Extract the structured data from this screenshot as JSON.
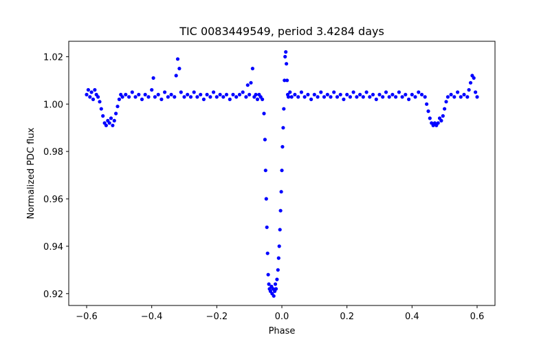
{
  "chart_data": {
    "type": "scatter",
    "title": "TIC 0083449549, period 3.4284 days",
    "xlabel": "Phase",
    "ylabel": "Normalized PDC flux",
    "xlim": [
      -0.655,
      0.655
    ],
    "ylim": [
      0.915,
      1.0265
    ],
    "xticks": [
      -0.6,
      -0.4,
      -0.2,
      0.0,
      0.2,
      0.4,
      0.6
    ],
    "xtick_labels": [
      "−0.6",
      "−0.4",
      "−0.2",
      "0.0",
      "0.2",
      "0.4",
      "0.6"
    ],
    "yticks": [
      0.92,
      0.94,
      0.96,
      0.98,
      1.0,
      1.02
    ],
    "ytick_labels": [
      "0.92",
      "0.94",
      "0.96",
      "0.98",
      "1.00",
      "1.02"
    ],
    "grid": false,
    "marker_color": "#0000ff",
    "series": [
      {
        "points": [
          [
            -0.6,
            1.004
          ],
          [
            -0.595,
            1.006
          ],
          [
            -0.59,
            1.003
          ],
          [
            -0.585,
            1.005
          ],
          [
            -0.58,
            1.002
          ],
          [
            -0.575,
            1.006
          ],
          [
            -0.57,
            1.004
          ],
          [
            -0.565,
            1.003
          ],
          [
            -0.56,
            1.001
          ],
          [
            -0.555,
            0.998
          ],
          [
            -0.55,
            0.995
          ],
          [
            -0.545,
            0.992
          ],
          [
            -0.54,
            0.991
          ],
          [
            -0.535,
            0.993
          ],
          [
            -0.53,
            0.992
          ],
          [
            -0.525,
            0.994
          ],
          [
            -0.52,
            0.991
          ],
          [
            -0.515,
            0.993
          ],
          [
            -0.51,
            0.996
          ],
          [
            -0.505,
            0.999
          ],
          [
            -0.5,
            1.002
          ],
          [
            -0.495,
            1.004
          ],
          [
            -0.49,
            1.003
          ],
          [
            -0.48,
            1.004
          ],
          [
            -0.47,
            1.003
          ],
          [
            -0.46,
            1.005
          ],
          [
            -0.45,
            1.003
          ],
          [
            -0.44,
            1.004
          ],
          [
            -0.43,
            1.002
          ],
          [
            -0.42,
            1.004
          ],
          [
            -0.41,
            1.003
          ],
          [
            -0.4,
            1.006
          ],
          [
            -0.395,
            1.011
          ],
          [
            -0.39,
            1.003
          ],
          [
            -0.38,
            1.004
          ],
          [
            -0.37,
            1.002
          ],
          [
            -0.36,
            1.005
          ],
          [
            -0.35,
            1.003
          ],
          [
            -0.34,
            1.004
          ],
          [
            -0.33,
            1.003
          ],
          [
            -0.325,
            1.012
          ],
          [
            -0.32,
            1.019
          ],
          [
            -0.315,
            1.015
          ],
          [
            -0.31,
            1.005
          ],
          [
            -0.3,
            1.003
          ],
          [
            -0.29,
            1.004
          ],
          [
            -0.28,
            1.003
          ],
          [
            -0.27,
            1.005
          ],
          [
            -0.26,
            1.003
          ],
          [
            -0.25,
            1.004
          ],
          [
            -0.24,
            1.002
          ],
          [
            -0.23,
            1.004
          ],
          [
            -0.22,
            1.003
          ],
          [
            -0.21,
            1.005
          ],
          [
            -0.2,
            1.003
          ],
          [
            -0.19,
            1.004
          ],
          [
            -0.18,
            1.003
          ],
          [
            -0.17,
            1.004
          ],
          [
            -0.16,
            1.002
          ],
          [
            -0.15,
            1.004
          ],
          [
            -0.14,
            1.003
          ],
          [
            -0.13,
            1.004
          ],
          [
            -0.12,
            1.005
          ],
          [
            -0.11,
            1.003
          ],
          [
            -0.105,
            1.008
          ],
          [
            -0.1,
            1.004
          ],
          [
            -0.095,
            1.009
          ],
          [
            -0.09,
            1.015
          ],
          [
            -0.085,
            1.003
          ],
          [
            -0.08,
            1.004
          ],
          [
            -0.075,
            1.002
          ],
          [
            -0.07,
            1.004
          ],
          [
            -0.065,
            1.003
          ],
          [
            -0.06,
            1.002
          ],
          [
            -0.055,
            0.996
          ],
          [
            -0.052,
            0.985
          ],
          [
            -0.05,
            0.972
          ],
          [
            -0.048,
            0.96
          ],
          [
            -0.046,
            0.948
          ],
          [
            -0.044,
            0.937
          ],
          [
            -0.042,
            0.928
          ],
          [
            -0.04,
            0.924
          ],
          [
            -0.038,
            0.922
          ],
          [
            -0.035,
            0.921
          ],
          [
            -0.032,
            0.923
          ],
          [
            -0.03,
            0.92
          ],
          [
            -0.027,
            0.922
          ],
          [
            -0.025,
            0.919
          ],
          [
            -0.022,
            0.921
          ],
          [
            -0.02,
            0.924
          ],
          [
            -0.018,
            0.922
          ],
          [
            -0.015,
            0.926
          ],
          [
            -0.012,
            0.93
          ],
          [
            -0.01,
            0.935
          ],
          [
            -0.008,
            0.94
          ],
          [
            -0.006,
            0.947
          ],
          [
            -0.004,
            0.955
          ],
          [
            -0.002,
            0.963
          ],
          [
            0.0,
            0.972
          ],
          [
            0.002,
            0.982
          ],
          [
            0.004,
            0.99
          ],
          [
            0.006,
            0.998
          ],
          [
            0.008,
            1.01
          ],
          [
            0.01,
            1.02
          ],
          [
            0.012,
            1.022
          ],
          [
            0.014,
            1.017
          ],
          [
            0.016,
            1.01
          ],
          [
            0.018,
            1.004
          ],
          [
            0.02,
            1.003
          ],
          [
            0.025,
            1.005
          ],
          [
            0.03,
            1.003
          ],
          [
            0.04,
            1.004
          ],
          [
            0.05,
            1.003
          ],
          [
            0.06,
            1.005
          ],
          [
            0.07,
            1.003
          ],
          [
            0.08,
            1.004
          ],
          [
            0.09,
            1.002
          ],
          [
            0.1,
            1.004
          ],
          [
            0.11,
            1.003
          ],
          [
            0.12,
            1.005
          ],
          [
            0.13,
            1.003
          ],
          [
            0.14,
            1.004
          ],
          [
            0.15,
            1.003
          ],
          [
            0.16,
            1.005
          ],
          [
            0.17,
            1.003
          ],
          [
            0.18,
            1.004
          ],
          [
            0.19,
            1.002
          ],
          [
            0.2,
            1.004
          ],
          [
            0.21,
            1.003
          ],
          [
            0.22,
            1.005
          ],
          [
            0.23,
            1.003
          ],
          [
            0.24,
            1.004
          ],
          [
            0.25,
            1.003
          ],
          [
            0.26,
            1.005
          ],
          [
            0.27,
            1.003
          ],
          [
            0.28,
            1.004
          ],
          [
            0.29,
            1.002
          ],
          [
            0.3,
            1.004
          ],
          [
            0.31,
            1.003
          ],
          [
            0.32,
            1.005
          ],
          [
            0.33,
            1.003
          ],
          [
            0.34,
            1.004
          ],
          [
            0.35,
            1.003
          ],
          [
            0.36,
            1.005
          ],
          [
            0.37,
            1.003
          ],
          [
            0.38,
            1.004
          ],
          [
            0.39,
            1.002
          ],
          [
            0.4,
            1.004
          ],
          [
            0.41,
            1.003
          ],
          [
            0.42,
            1.005
          ],
          [
            0.43,
            1.004
          ],
          [
            0.44,
            1.003
          ],
          [
            0.445,
            1.0
          ],
          [
            0.45,
            0.997
          ],
          [
            0.455,
            0.994
          ],
          [
            0.46,
            0.992
          ],
          [
            0.465,
            0.991
          ],
          [
            0.47,
            0.992
          ],
          [
            0.475,
            0.991
          ],
          [
            0.48,
            0.992
          ],
          [
            0.485,
            0.994
          ],
          [
            0.49,
            0.993
          ],
          [
            0.495,
            0.995
          ],
          [
            0.5,
            0.998
          ],
          [
            0.505,
            1.001
          ],
          [
            0.51,
            1.003
          ],
          [
            0.52,
            1.004
          ],
          [
            0.53,
            1.003
          ],
          [
            0.54,
            1.005
          ],
          [
            0.55,
            1.003
          ],
          [
            0.56,
            1.004
          ],
          [
            0.57,
            1.003
          ],
          [
            0.575,
            1.006
          ],
          [
            0.58,
            1.009
          ],
          [
            0.585,
            1.012
          ],
          [
            0.59,
            1.011
          ],
          [
            0.595,
            1.005
          ],
          [
            0.6,
            1.003
          ]
        ]
      }
    ]
  }
}
